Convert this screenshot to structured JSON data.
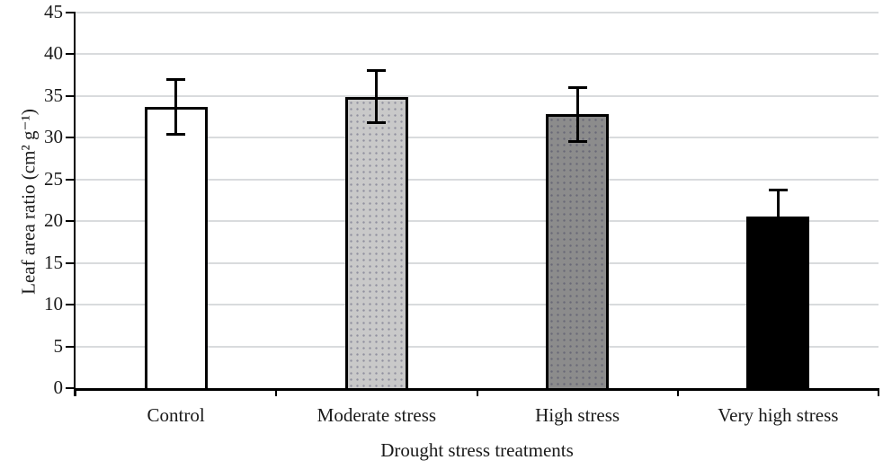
{
  "chart_data": {
    "type": "bar",
    "title": "",
    "xlabel": "Drought stress treatments",
    "ylabel": "Leaf area ratio (cm² g⁻¹)",
    "categories": [
      "Control",
      "Moderate stress",
      "High stress",
      "Very high stress"
    ],
    "series": [
      {
        "name": "Leaf area ratio",
        "values": [
          33.7,
          34.9,
          32.8,
          20.6
        ],
        "errors": [
          3.4,
          3.3,
          3.4,
          3.3
        ]
      }
    ],
    "bar_fills": [
      "#ffffff",
      "#c9c9c9",
      "#8c8c8c",
      "#000000"
    ],
    "bar_textures": [
      "none",
      "speckle",
      "speckle",
      "none"
    ],
    "bar_border_color": "#000000",
    "error_bar_color": "#000000",
    "ylim": [
      0,
      45
    ],
    "yticks": [
      0,
      5,
      10,
      15,
      20,
      25,
      30,
      35,
      40,
      45
    ],
    "grid": true,
    "gridline_color": "#d9dbdd",
    "legend": false,
    "text_color": "#1a1a1a",
    "background_color": "#ffffff"
  }
}
